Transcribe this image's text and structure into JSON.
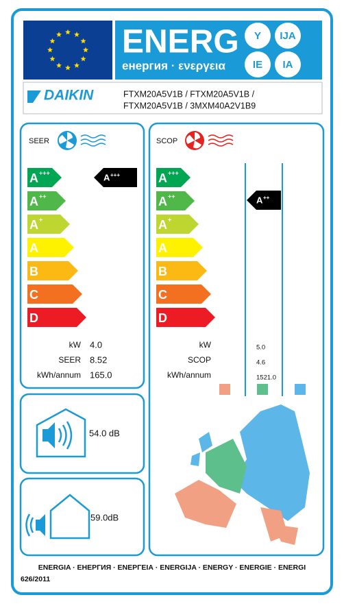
{
  "header": {
    "title": "ENERG",
    "subtitle": "енергия · ενεργεια",
    "suffixes": [
      "Y",
      "IJA",
      "IE",
      "IA"
    ]
  },
  "brand": "DAIKIN",
  "models": [
    "FTXM20A5V1B / FTXM20A5V1B /",
    "FTXM20A5V1B / 3MXM40A2V1B9"
  ],
  "classes": [
    {
      "letter": "A",
      "sup": "+++"
    },
    {
      "letter": "A",
      "sup": "++"
    },
    {
      "letter": "A",
      "sup": "+"
    },
    {
      "letter": "A",
      "sup": ""
    },
    {
      "letter": "B",
      "sup": ""
    },
    {
      "letter": "C",
      "sup": ""
    },
    {
      "letter": "D",
      "sup": ""
    }
  ],
  "seer": {
    "label": "SEER",
    "rating": {
      "letter": "A",
      "sup": "+++"
    },
    "rows": [
      {
        "label": "kW",
        "value": "4.0"
      },
      {
        "label": "SEER",
        "value": "8.52"
      },
      {
        "label": "kWh/annum",
        "value": "165.0"
      }
    ]
  },
  "scop": {
    "label": "SCOP",
    "rating": {
      "letter": "A",
      "sup": "++"
    },
    "rows": [
      {
        "label": "kW",
        "value": "5.0"
      },
      {
        "label": "SCOP",
        "value": "4.6"
      },
      {
        "label": "kWh/annum",
        "value": "1521.0"
      }
    ]
  },
  "noise": {
    "indoor": "54.0 dB",
    "outdoor": "59.0dB"
  },
  "footer": {
    "languages": "ENERGIA · ЕНЕРГИЯ · ΕΝΕΡΓΕΙΑ · ENERGIJA · ENERGY · ENERGIE · ENERGI",
    "regulation": "626/2011"
  }
}
